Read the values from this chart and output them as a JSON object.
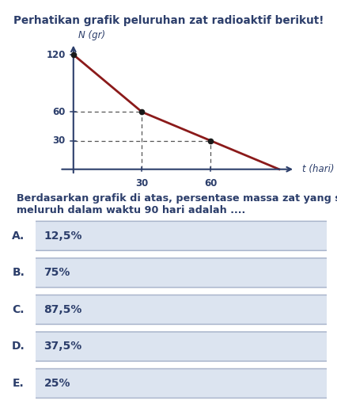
{
  "title": "Perhatikan grafik peluruhan zat radioaktif berikut!",
  "graph_xlabel": "t (hari)",
  "graph_ylabel": "N (gr)",
  "line_points_x": [
    0,
    30,
    60,
    90
  ],
  "line_points_y": [
    120,
    60,
    30,
    0
  ],
  "dashed_points": [
    [
      30,
      60
    ],
    [
      60,
      30
    ]
  ],
  "x_ticks": [
    30,
    60
  ],
  "y_ticks": [
    30,
    60,
    120
  ],
  "line_color": "#8B1A1A",
  "dashed_color": "#555555",
  "dot_color": "#1a1a1a",
  "axis_color": "#2c3e6b",
  "text_color": "#2c3e6b",
  "question_text1": "Berdasarkan grafik di atas, persentase massa zat yang sudah",
  "question_text2": "meluruh dalam waktu 90 hari adalah ....",
  "options": [
    {
      "label": "A.",
      "text": "12,5%"
    },
    {
      "label": "B.",
      "text": "75%"
    },
    {
      "label": "C.",
      "text": "87,5%"
    },
    {
      "label": "D.",
      "text": "37,5%"
    },
    {
      "label": "E.",
      "text": "25%"
    }
  ],
  "option_box_color": "#dce4f0",
  "option_border_color": "#aab5cc",
  "background_color": "#ffffff",
  "fig_width": 4.26,
  "fig_height": 5.29
}
